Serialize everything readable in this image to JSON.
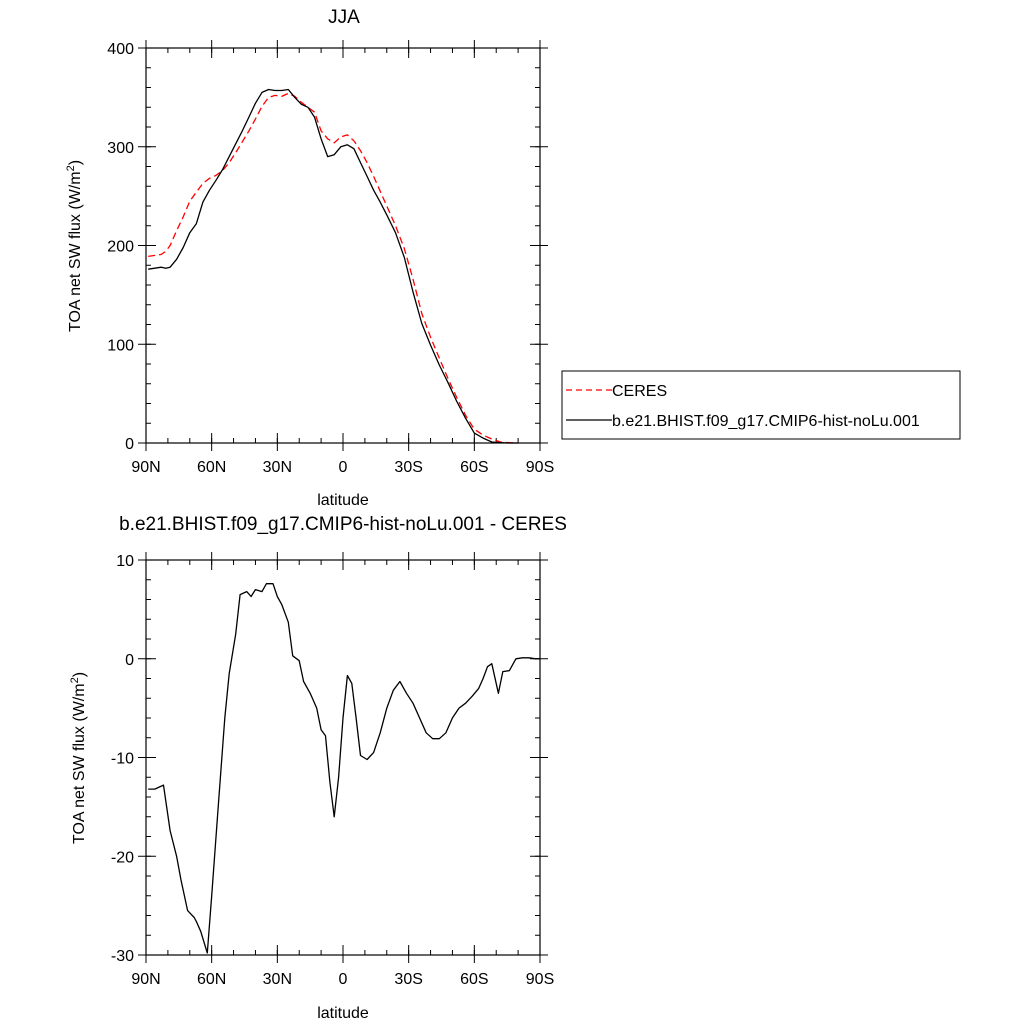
{
  "chart_data": [
    {
      "type": "line",
      "title": "JJA",
      "xlabel": "latitude",
      "ylabel_main": "TOA net SW flux (W/m",
      "ylabel_sup": "2",
      "ylabel_close": ")",
      "xlim": [
        90,
        -90
      ],
      "ylim": [
        0,
        400
      ],
      "xticks": [
        {
          "v": 90,
          "label": "90N"
        },
        {
          "v": 60,
          "label": "60N"
        },
        {
          "v": 30,
          "label": "30N"
        },
        {
          "v": 0,
          "label": "0"
        },
        {
          "v": -30,
          "label": "30S"
        },
        {
          "v": -60,
          "label": "60S"
        },
        {
          "v": -90,
          "label": "90S"
        }
      ],
      "yticks": [
        0,
        100,
        200,
        300,
        400
      ],
      "legend": {
        "position": "right",
        "entries": [
          "CERES",
          "b.e21.BHIST.f09_g17.CMIP6-hist-noLu.001"
        ]
      },
      "series": [
        {
          "name": "CERES",
          "color": "#ff0000",
          "dashed": true,
          "x": [
            89,
            86,
            83,
            81,
            79,
            76,
            73,
            70,
            67,
            64,
            61,
            58,
            55,
            52,
            49,
            46,
            43,
            40,
            37,
            34,
            31,
            28,
            25,
            22,
            19,
            16,
            13,
            10,
            7,
            4,
            1,
            -2,
            -5,
            -8,
            -11,
            -14,
            -17,
            -20,
            -24,
            -28,
            -32,
            -36,
            -40,
            -44,
            -48,
            -52,
            -56,
            -60,
            -64,
            -68,
            -72,
            -76,
            -80
          ],
          "y": [
            189,
            190,
            191,
            194,
            200,
            215,
            229,
            245,
            254,
            263,
            268,
            271,
            276,
            284,
            294,
            305,
            316,
            328,
            341,
            350,
            352,
            351,
            354,
            351,
            345,
            340,
            335,
            316,
            308,
            304,
            310,
            312,
            306,
            296,
            284,
            270,
            255,
            240,
            220,
            197,
            166,
            131,
            107,
            86,
            65,
            46,
            28,
            14,
            8,
            4,
            1,
            0.3,
            0
          ]
        },
        {
          "name": "b.e21.BHIST.f09_g17.CMIP6-hist-noLu.001",
          "color": "#000000",
          "dashed": false,
          "x": [
            89,
            86,
            83,
            81,
            79,
            76,
            73,
            70,
            67,
            64,
            61,
            58,
            55,
            52,
            49,
            46,
            43,
            40,
            37,
            34,
            31,
            28,
            25,
            22,
            19,
            16,
            13,
            10,
            7,
            4,
            1,
            -2,
            -5,
            -8,
            -11,
            -14,
            -17,
            -20,
            -24,
            -28,
            -32,
            -36,
            -40,
            -44,
            -48,
            -52,
            -56,
            -60,
            -64,
            -68,
            -72,
            -76,
            -80
          ],
          "y": [
            176,
            177,
            178,
            177,
            178,
            186,
            198,
            213,
            222,
            244,
            256,
            266,
            277,
            290,
            303,
            316,
            330,
            344,
            355,
            358,
            357,
            357,
            358,
            350,
            343,
            340,
            330,
            308,
            290,
            292,
            300,
            302,
            298,
            284,
            270,
            256,
            244,
            231,
            213,
            188,
            153,
            121,
            99,
            79,
            61,
            42,
            25,
            10,
            5,
            1,
            0.3,
            0,
            0
          ]
        }
      ]
    },
    {
      "type": "line",
      "title": "b.e21.BHIST.f09_g17.CMIP6-hist-noLu.001 - CERES",
      "xlabel": "latitude",
      "ylabel_main": "TOA net SW flux (W/m",
      "ylabel_sup": "2",
      "ylabel_close": ")",
      "xlim": [
        90,
        -90
      ],
      "ylim": [
        -30,
        10
      ],
      "xticks": [
        {
          "v": 90,
          "label": "90N"
        },
        {
          "v": 60,
          "label": "60N"
        },
        {
          "v": 30,
          "label": "30N"
        },
        {
          "v": 0,
          "label": "0"
        },
        {
          "v": -30,
          "label": "30S"
        },
        {
          "v": -60,
          "label": "60S"
        },
        {
          "v": -90,
          "label": "90S"
        }
      ],
      "yticks": [
        -30,
        -20,
        -10,
        0,
        10
      ],
      "series": [
        {
          "color": "#000000",
          "x": [
            89,
            86,
            84,
            82,
            79,
            76,
            74,
            71,
            68,
            67,
            65,
            62,
            60,
            57,
            54,
            52,
            49,
            47,
            44,
            42,
            40,
            37,
            35,
            32,
            30,
            28,
            25,
            23,
            20,
            18,
            15,
            12,
            10,
            8,
            6,
            4,
            2,
            0,
            -2,
            -4,
            -6,
            -8,
            -11,
            -14,
            -17,
            -20,
            -23,
            -26,
            -29,
            -32,
            -35,
            -38,
            -41,
            -44,
            -47,
            -50,
            -53,
            -56,
            -59,
            -62,
            -64,
            -66,
            -68,
            -71,
            -73,
            -76,
            -79,
            -82,
            -85,
            -88,
            -90
          ],
          "y": [
            -13.2,
            -13.2,
            -13.0,
            -12.8,
            -17.4,
            -20.0,
            -22.4,
            -25.5,
            -26.2,
            -26.6,
            -27.6,
            -29.8,
            -24.0,
            -15.0,
            -6.0,
            -1.5,
            2.5,
            6.5,
            6.8,
            6.3,
            7.0,
            6.8,
            7.6,
            7.6,
            6.3,
            5.5,
            3.7,
            0.3,
            -0.2,
            -2.3,
            -3.5,
            -5.0,
            -7.2,
            -7.8,
            -12.5,
            -16.0,
            -12.0,
            -6.0,
            -1.7,
            -2.5,
            -6.0,
            -9.8,
            -10.2,
            -9.5,
            -7.5,
            -5.0,
            -3.2,
            -2.3,
            -3.5,
            -4.5,
            -6.0,
            -7.5,
            -8.1,
            -8.1,
            -7.5,
            -6.0,
            -5.0,
            -4.5,
            -3.8,
            -3.0,
            -2.0,
            -0.8,
            -0.5,
            -3.5,
            -1.3,
            -1.2,
            0,
            0.1,
            0.1,
            0,
            0
          ]
        }
      ]
    }
  ]
}
